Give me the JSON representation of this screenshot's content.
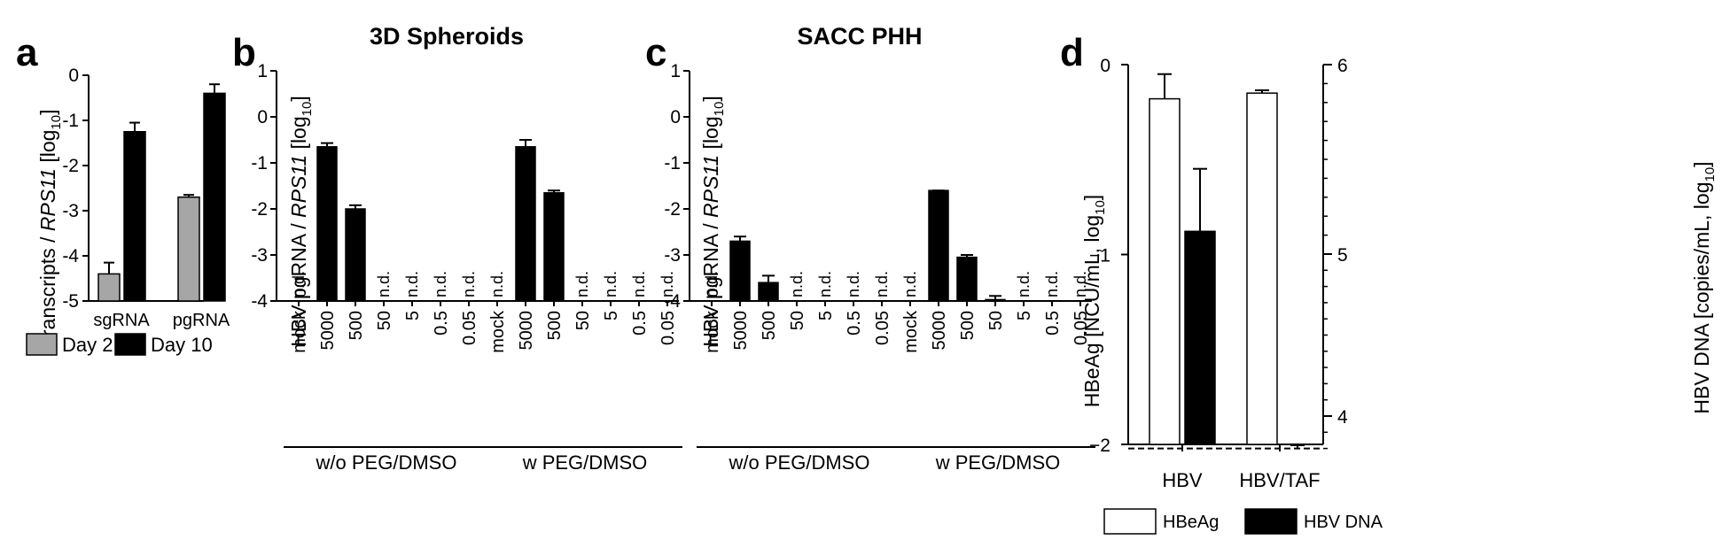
{
  "colors": {
    "black": "#000000",
    "gray": "#a6a6a6",
    "white": "#ffffff"
  },
  "chart_data": [
    {
      "panel": "a",
      "type": "bar",
      "title": "",
      "ylabel_pre": "transcripts / ",
      "ylabel_ital": "RPS11",
      "ylabel_post": " [log",
      "ylabel_sub": "10",
      "ylabel_end": "]",
      "ylim": [
        -5,
        0
      ],
      "yticks": [
        "0",
        "-1",
        "-2",
        "-3",
        "-4",
        "-5"
      ],
      "categories": [
        "sgRNA",
        "pgRNA"
      ],
      "series": [
        {
          "name": "Day 2",
          "color": "#a6a6a6",
          "values": [
            -4.4,
            -2.7
          ],
          "errors": [
            0.25,
            0.05
          ]
        },
        {
          "name": "Day 10",
          "color": "#000000",
          "values": [
            -1.25,
            -0.4
          ],
          "errors": [
            0.2,
            0.2
          ]
        }
      ]
    },
    {
      "panel": "b",
      "type": "bar",
      "title": "3D Spheroids",
      "ylabel_pre": "HBV pgRNA / ",
      "ylabel_ital": "RPS11",
      "ylabel_post": " [log",
      "ylabel_sub": "10",
      "ylabel_end": "]",
      "ylim": [
        -4,
        1
      ],
      "yticks": [
        "1",
        "0",
        "-1",
        "-2",
        "-3",
        "-4"
      ],
      "categories": [
        "mock",
        "5000",
        "500",
        "50",
        "5",
        "0.5",
        "0.05",
        "mock",
        "5000",
        "500",
        "50",
        "5",
        "0.5",
        "0.05"
      ],
      "groups": [
        "w/o PEG/DMSO",
        "w PEG/DMSO"
      ],
      "nd_label": "n.d.",
      "values": [
        null,
        -0.65,
        -2.0,
        null,
        null,
        null,
        null,
        null,
        -0.65,
        -1.65,
        null,
        null,
        null,
        null
      ],
      "errors": [
        0,
        0.08,
        0.08,
        0,
        0,
        0,
        0,
        0,
        0.15,
        0.05,
        0,
        0,
        0,
        0
      ]
    },
    {
      "panel": "c",
      "type": "bar",
      "title": "SACC PHH",
      "ylabel_pre": "HBV pgRNA / ",
      "ylabel_ital": "RPS11",
      "ylabel_post": " [log",
      "ylabel_sub": "10",
      "ylabel_end": "]",
      "ylim": [
        -4,
        1
      ],
      "yticks": [
        "1",
        "0",
        "-1",
        "-2",
        "-3",
        "-4"
      ],
      "categories": [
        "mock",
        "5000",
        "500",
        "50",
        "5",
        "0.5",
        "0.05",
        "mock",
        "5000",
        "500",
        "50",
        "5",
        "0.5",
        "0.05"
      ],
      "groups": [
        "w/o PEG/DMSO",
        "w PEG/DMSO"
      ],
      "nd_label": "n.d.",
      "values": [
        null,
        -2.7,
        -3.6,
        null,
        null,
        null,
        null,
        null,
        -1.6,
        -3.05,
        -3.97,
        null,
        null,
        null
      ],
      "errors": [
        0,
        0.1,
        0.15,
        0,
        0,
        0,
        0,
        0,
        0,
        0.05,
        0.08,
        0,
        0,
        0
      ]
    },
    {
      "panel": "d",
      "type": "bar",
      "title": "",
      "ylabel_left": "HBeAg [NCU/mL, log",
      "ylabel_left_sub": "10",
      "ylabel_left_end": "]",
      "ylabel_right": "HBV DNA [copies/mL, log",
      "ylabel_right_sub": "10",
      "ylabel_right_end": "]",
      "ylim_left": [
        -2,
        0
      ],
      "yticks_left": [
        "0",
        "−1",
        "−2"
      ],
      "ylim_right": [
        3.75,
        6
      ],
      "yticks_right": [
        "6",
        "5",
        "4"
      ],
      "categories": [
        "HBV",
        "HBV/TAF"
      ],
      "series": [
        {
          "name": "HBeAg",
          "axis": "left",
          "color": "#ffffff",
          "values": [
            -0.18,
            -0.15
          ],
          "errors": [
            0.13,
            0.015
          ]
        },
        {
          "name": "HBV DNA",
          "axis": "right",
          "color": "#000000",
          "values": [
            5.12,
            3.8
          ],
          "errors": [
            0.33,
            0.02
          ]
        }
      ],
      "lloq_right": 3.8
    }
  ]
}
